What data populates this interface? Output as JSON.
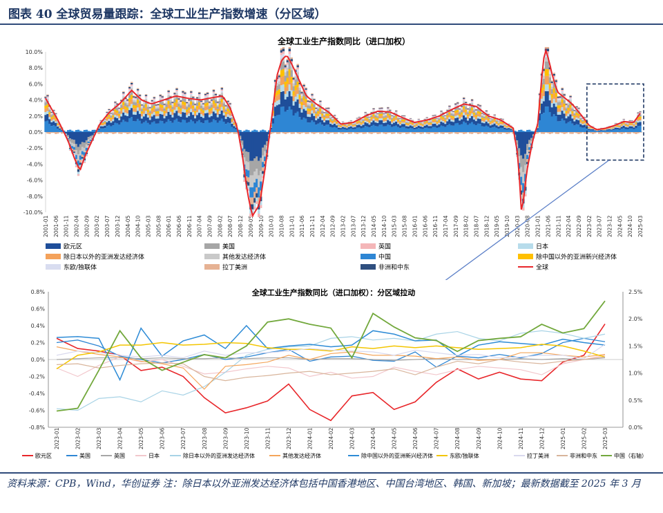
{
  "figure": {
    "title": "图表 40   全球贸易量跟踪：全球工业生产指数增速（分区域）",
    "source": "资料来源：CPB，Wind，华创证券    注：除日本以外亚洲发达经济体包括中国香港地区、中国台湾地区、韩国、新加坡；最新数据截至 2025 年 3 月"
  },
  "colors": {
    "eurozone": "#1f4e9a",
    "us": "#a6a6a6",
    "uk": "#f4b6b8",
    "japan": "#b7dceb",
    "dev_asia": "#f4a25b",
    "other_dev": "#c9c9c9",
    "china": "#2e86d4",
    "em_asia": "#ffc000",
    "eeu_cis": "#d9ddf0",
    "latam": "#e6b294",
    "africa_me": "#2f4f7f",
    "world": "#e8262a",
    "china_line": "#72a83c",
    "japan_line": "#f2c7cc",
    "east_eu_line": "#d9d9ee",
    "latam_line": "#d8b49a",
    "dev_asia_line": "#a8d3e6",
    "other_dev_line": "#f4a55a",
    "em_asia_line": "#2d8bd6",
    "eeu_line": "#f3c500",
    "afme_line": "#bebebe"
  },
  "chart_data": [
    {
      "type": "area",
      "title": "全球工业生产指数同比（进口加权）",
      "ylim": [
        -10,
        10
      ],
      "yticks": [
        "10.0%",
        "8.0%",
        "6.0%",
        "4.0%",
        "2.0%",
        "0.0%",
        "-2.0%",
        "-4.0%",
        "-6.0%",
        "-8.0%",
        "-10.0%"
      ],
      "xticks": [
        "2001-01",
        "2001-06",
        "2001-11",
        "2002-04",
        "2002-09",
        "2003-02",
        "2003-07",
        "2003-12",
        "2004-05",
        "2004-10",
        "2005-03",
        "2005-08",
        "2006-01",
        "2006-06",
        "2006-11",
        "2007-04",
        "2007-09",
        "2008-02",
        "2008-07",
        "2008-12",
        "2009-05",
        "2009-10",
        "2010-03",
        "2010-08",
        "2011-01",
        "2011-06",
        "2011-11",
        "2012-04",
        "2012-09",
        "2013-02",
        "2013-07",
        "2013-12",
        "2014-05",
        "2014-10",
        "2015-03",
        "2015-08",
        "2016-01",
        "2016-06",
        "2016-11",
        "2017-04",
        "2017-09",
        "2018-02",
        "2018-07",
        "2018-12",
        "2019-05",
        "2019-10",
        "2020-03",
        "2020-08",
        "2021-01",
        "2021-06",
        "2021-11",
        "2022-04",
        "2022-09",
        "2023-02",
        "2023-07",
        "2023-12",
        "2024-05",
        "2024-10",
        "2025-03"
      ],
      "legend": [
        "欧元区",
        "美国",
        "英国",
        "日本",
        "除日本以外的亚洲发达经济体",
        "其他发达经济体",
        "中国",
        "除中国以外的亚洲新兴经济体",
        "东欧/独联体",
        "拉丁美洲",
        "非洲和中东",
        "全球"
      ],
      "world_anchors": [
        [
          2001.0,
          4.2
        ],
        [
          2001.5,
          1.5
        ],
        [
          2001.9,
          -1.0
        ],
        [
          2002.2,
          -3.5
        ],
        [
          2002.4,
          -4.8
        ],
        [
          2002.6,
          -3.0
        ],
        [
          2002.9,
          -1.0
        ],
        [
          2003.2,
          1.0
        ],
        [
          2003.6,
          2.5
        ],
        [
          2004.0,
          3.5
        ],
        [
          2004.5,
          5.2
        ],
        [
          2004.9,
          4.0
        ],
        [
          2005.3,
          3.5
        ],
        [
          2005.8,
          4.0
        ],
        [
          2006.3,
          4.5
        ],
        [
          2006.8,
          4.2
        ],
        [
          2007.3,
          4.0
        ],
        [
          2007.8,
          4.3
        ],
        [
          2008.2,
          4.5
        ],
        [
          2008.5,
          3.0
        ],
        [
          2008.8,
          0.5
        ],
        [
          2009.0,
          -3.0
        ],
        [
          2009.2,
          -7.5
        ],
        [
          2009.4,
          -10.5
        ],
        [
          2009.7,
          -9.0
        ],
        [
          2009.9,
          -5.0
        ],
        [
          2010.2,
          2.0
        ],
        [
          2010.4,
          7.0
        ],
        [
          2010.6,
          9.0
        ],
        [
          2010.8,
          9.6
        ],
        [
          2011.0,
          8.5
        ],
        [
          2011.3,
          6.5
        ],
        [
          2011.6,
          4.5
        ],
        [
          2012.0,
          3.5
        ],
        [
          2012.5,
          2.5
        ],
        [
          2013.0,
          1.0
        ],
        [
          2013.5,
          1.2
        ],
        [
          2014.0,
          2.0
        ],
        [
          2014.5,
          2.6
        ],
        [
          2015.0,
          2.5
        ],
        [
          2015.5,
          1.8
        ],
        [
          2016.0,
          1.2
        ],
        [
          2016.5,
          1.5
        ],
        [
          2017.0,
          2.0
        ],
        [
          2017.5,
          2.8
        ],
        [
          2018.0,
          3.5
        ],
        [
          2018.5,
          3.2
        ],
        [
          2019.0,
          2.0
        ],
        [
          2019.5,
          1.5
        ],
        [
          2020.0,
          0.5
        ],
        [
          2020.2,
          -3.0
        ],
        [
          2020.35,
          -10.5
        ],
        [
          2020.55,
          -5.0
        ],
        [
          2020.8,
          -1.0
        ],
        [
          2021.0,
          1.0
        ],
        [
          2021.2,
          8.0
        ],
        [
          2021.3,
          10.5
        ],
        [
          2021.45,
          9.0
        ],
        [
          2021.6,
          7.0
        ],
        [
          2021.8,
          5.0
        ],
        [
          2022.0,
          4.5
        ],
        [
          2022.4,
          3.5
        ],
        [
          2022.8,
          2.0
        ],
        [
          2023.1,
          0.8
        ],
        [
          2023.4,
          0.3
        ],
        [
          2023.8,
          0.5
        ],
        [
          2024.1,
          0.8
        ],
        [
          2024.5,
          1.3
        ],
        [
          2024.9,
          1.2
        ],
        [
          2025.25,
          2.7
        ]
      ]
    },
    {
      "type": "line",
      "title": "全球工业生产指数同比（进口加权）：分区域拉动",
      "x": [
        "2023-01",
        "2023-02",
        "2023-03",
        "2023-04",
        "2023-05",
        "2023-06",
        "2023-07",
        "2023-08",
        "2023-09",
        "2023-10",
        "2023-11",
        "2023-12",
        "2024-01",
        "2024-02",
        "2024-03",
        "2024-04",
        "2024-05",
        "2024-06",
        "2024-07",
        "2024-08",
        "2024-09",
        "2024-10",
        "2024-11",
        "2024-12",
        "2025-01",
        "2025-02",
        "2025-03"
      ],
      "ylim": [
        -0.8,
        0.8
      ],
      "yticks": [
        "0.8%",
        "0.6%",
        "0.4%",
        "0.2%",
        "0.0%",
        "-0.2%",
        "-0.4%",
        "-0.6%",
        "-0.8%"
      ],
      "y2lim": [
        0,
        2.5
      ],
      "y2ticks": [
        "2.5%",
        "2.0%",
        "1.5%",
        "1.0%",
        "0.5%",
        "0.0%"
      ],
      "series": [
        {
          "name": "欧元区",
          "color_key": "world",
          "axis": "left",
          "width": 1.6,
          "values": [
            0.25,
            0.13,
            0.1,
            0.05,
            -0.13,
            -0.09,
            -0.2,
            -0.45,
            -0.63,
            -0.57,
            -0.49,
            -0.29,
            -0.59,
            -0.72,
            -0.43,
            -0.39,
            -0.59,
            -0.5,
            -0.27,
            -0.11,
            -0.23,
            -0.15,
            -0.23,
            -0.25,
            -0.03,
            0.05,
            0.42
          ]
        },
        {
          "name": "美国",
          "color_key": "china",
          "axis": "left",
          "width": 1.3,
          "values": [
            0.2,
            0.23,
            0.16,
            0.04,
            0.0,
            -0.04,
            0.0,
            0.06,
            0.0,
            0.03,
            0.08,
            0.12,
            -0.02,
            0.03,
            0.04,
            -0.01,
            -0.02,
            0.09,
            -0.09,
            0.04,
            0.02,
            0.06,
            0.02,
            0.07,
            0.2,
            0.25,
            0.21
          ]
        },
        {
          "name": "英国",
          "color_key": "us",
          "axis": "left",
          "width": 1.2,
          "values": [
            0.0,
            0.01,
            0.02,
            0.02,
            0.01,
            0.02,
            0.01,
            0.01,
            0.02,
            0.01,
            0.02,
            0.02,
            0.0,
            0.01,
            0.01,
            0.0,
            -0.01,
            0.0,
            0.01,
            0.0,
            0.0,
            0.0,
            0.01,
            0.0,
            0.01,
            0.0,
            0.02
          ]
        },
        {
          "name": "日本",
          "color_key": "japan_line",
          "axis": "left",
          "width": 1.2,
          "values": [
            -0.1,
            -0.2,
            -0.07,
            0.03,
            -0.03,
            0.0,
            -0.08,
            -0.17,
            -0.15,
            -0.11,
            -0.08,
            -0.1,
            -0.2,
            -0.15,
            -0.22,
            -0.2,
            -0.09,
            -0.14,
            -0.18,
            -0.12,
            -0.08,
            -0.1,
            -0.12,
            -0.18,
            -0.05,
            0.0,
            0.05
          ]
        },
        {
          "name": "除日本以外的亚洲发达经济体",
          "color_key": "dev_asia_line",
          "axis": "left",
          "width": 1.2,
          "values": [
            -0.58,
            -0.6,
            -0.46,
            -0.44,
            -0.5,
            -0.37,
            -0.42,
            -0.32,
            -0.15,
            0.05,
            0.12,
            0.15,
            0.16,
            0.25,
            0.27,
            0.23,
            0.25,
            0.22,
            0.3,
            0.33,
            0.25,
            0.22,
            0.31,
            0.34,
            0.31,
            0.25,
            0.3
          ]
        },
        {
          "name": "其他发达经济体",
          "color_key": "other_dev_line",
          "axis": "left",
          "width": 1.2,
          "values": [
            0.15,
            0.1,
            0.06,
            0.03,
            -0.02,
            -0.05,
            -0.1,
            -0.35,
            -0.08,
            -0.06,
            -0.03,
            0.05,
            0.0,
            0.07,
            0.09,
            0.05,
            0.05,
            0.04,
            0.01,
            0.03,
            -0.01,
            0.0,
            0.08,
            0.08,
            0.05,
            0.03,
            0.06
          ]
        },
        {
          "name": "除中国以外的亚洲新兴经济体",
          "color_key": "em_asia_line",
          "axis": "left",
          "width": 1.5,
          "values": [
            0.26,
            0.27,
            0.25,
            -0.24,
            0.37,
            0.04,
            0.22,
            0.29,
            0.13,
            0.4,
            0.13,
            0.16,
            0.18,
            0.15,
            0.17,
            0.34,
            0.3,
            0.22,
            0.23,
            0.04,
            0.17,
            0.21,
            0.19,
            0.17,
            0.24,
            0.2,
            0.17
          ]
        },
        {
          "name": "东欧/独联体",
          "color_key": "eeu_line",
          "axis": "left",
          "width": 1.5,
          "values": [
            -0.11,
            0.05,
            0.09,
            0.17,
            0.17,
            0.2,
            0.17,
            0.18,
            0.2,
            0.19,
            0.14,
            0.12,
            0.12,
            0.1,
            0.15,
            0.13,
            0.16,
            0.14,
            0.16,
            0.14,
            0.12,
            0.13,
            0.14,
            0.18,
            0.16,
            0.1,
            0.03
          ]
        },
        {
          "name": "拉丁美洲",
          "color_key": "east_eu_line",
          "axis": "left",
          "width": 1.2,
          "values": [
            0.05,
            0.1,
            0.08,
            0.05,
            0.03,
            0.05,
            0.02,
            0.1,
            0.05,
            0.08,
            0.08,
            0.1,
            0.13,
            0.11,
            0.1,
            0.09,
            0.05,
            0.11,
            0.08,
            0.05,
            0.06,
            0.02,
            0.03,
            0.05,
            0.05,
            0.01,
            0.18
          ]
        },
        {
          "name": "非洲和中东",
          "color_key": "latam_line",
          "axis": "left",
          "width": 1.2,
          "values": [
            -0.06,
            -0.05,
            -0.1,
            -0.07,
            -0.05,
            -0.04,
            -0.05,
            -0.2,
            -0.25,
            -0.21,
            -0.19,
            -0.16,
            -0.14,
            -0.18,
            -0.16,
            -0.14,
            -0.11,
            -0.18,
            -0.09,
            -0.02,
            -0.05,
            0.0,
            -0.03,
            -0.05,
            -0.02,
            0.0,
            0.03
          ]
        },
        {
          "name": "中国（右轴）",
          "color_key": "china_line",
          "axis": "right",
          "width": 1.8,
          "values": [
            0.3,
            0.35,
            1.05,
            1.78,
            1.28,
            1.05,
            1.2,
            1.34,
            1.28,
            1.5,
            1.94,
            2.0,
            1.9,
            1.83,
            1.28,
            2.1,
            1.85,
            1.65,
            1.6,
            1.4,
            1.6,
            1.64,
            1.67,
            1.9,
            1.74,
            1.82,
            2.33
          ]
        }
      ]
    }
  ]
}
